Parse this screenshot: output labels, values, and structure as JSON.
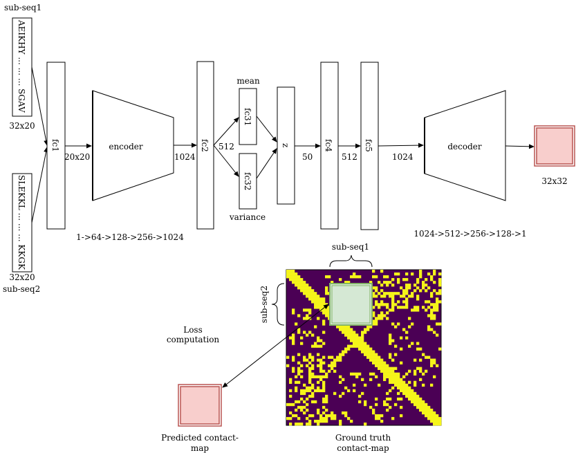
{
  "inputs": {
    "seq1": {
      "name": "sub-seq1",
      "text": "AEIKHY ... ... ... SGAV",
      "shape": "32x20"
    },
    "seq2": {
      "name": "sub-seq2",
      "text": "SLEKKL ... ... ... KKGK",
      "shape": "32x20"
    }
  },
  "layers": {
    "fc1": "fc1",
    "encoder": "encoder",
    "fc2": "fc2",
    "fc31": "fc31",
    "fc32": "fc32",
    "z": "z",
    "fc4": "fc4",
    "fc5": "fc5",
    "decoder": "decoder"
  },
  "edge_labels": {
    "fc1_out": "20x20",
    "encoder_out": "1024",
    "fc2_out": "512",
    "z_out": "50",
    "fc4_out": "512",
    "fc5_out": "1024"
  },
  "annotations": {
    "mean": "mean",
    "variance": "variance",
    "encoder_channels": "1->64->128->256->1024",
    "decoder_channels": "1024->512->256->128->1",
    "output_shape": "32x32"
  },
  "bottom": {
    "subseq1_label": "sub-seq1",
    "subseq2_label": "sub-seq2",
    "loss_label": [
      "Loss",
      "computation"
    ],
    "predicted_label": [
      "Predicted contact-",
      "map"
    ],
    "truth_label": [
      "Ground truth",
      "contact-map"
    ]
  },
  "colors": {
    "output_fill": "#f8cecc",
    "output_border": "#b85450",
    "crop_fill": "#d5e8d4",
    "crop_border": "#82b366",
    "heatmap_bg": "#4b0055",
    "heatmap_fg": "#f5f51a"
  }
}
